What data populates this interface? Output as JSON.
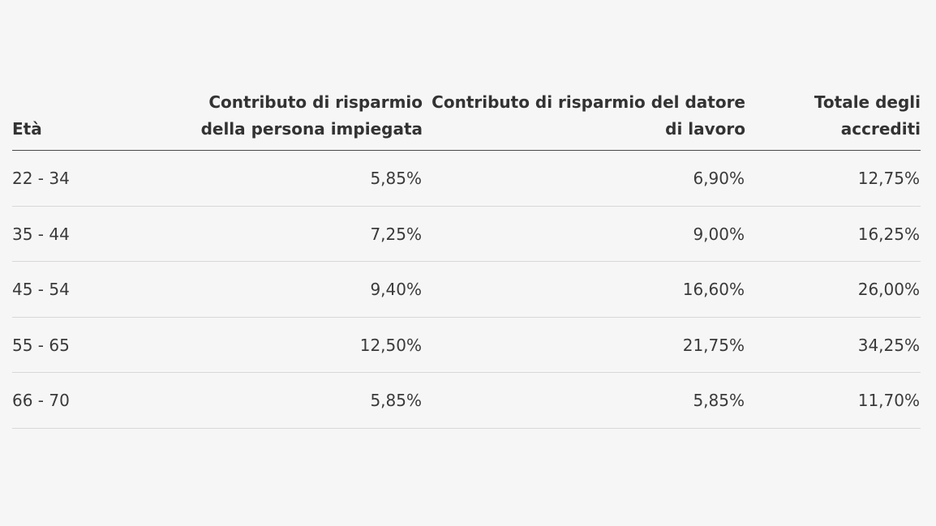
{
  "table": {
    "headers": [
      "Età",
      "Contributo di risparmio della persona impiegata",
      "Contributo di risparmio del datore di lavoro",
      "Totale degli accrediti"
    ],
    "rows": [
      [
        "22 - 34",
        "5,85%",
        "6,90%",
        "12,75%"
      ],
      [
        "35 - 44",
        "7,25%",
        "9,00%",
        "16,25%"
      ],
      [
        "45 - 54",
        "9,40%",
        "16,60%",
        "26,00%"
      ],
      [
        "55 - 65",
        "12,50%",
        "21,75%",
        "34,25%"
      ],
      [
        "66 - 70",
        "5,85%",
        "5,85%",
        "11,70%"
      ]
    ]
  }
}
